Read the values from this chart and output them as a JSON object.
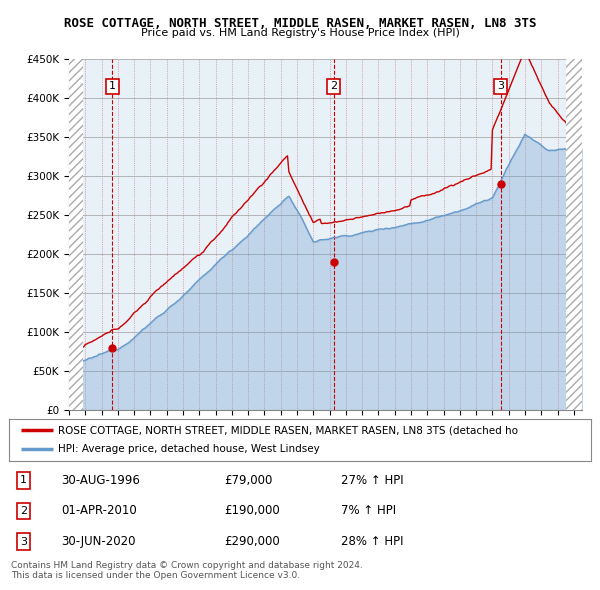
{
  "title": "ROSE COTTAGE, NORTH STREET, MIDDLE RASEN, MARKET RASEN, LN8 3TS",
  "subtitle": "Price paid vs. HM Land Registry's House Price Index (HPI)",
  "ylim": [
    0,
    450000
  ],
  "xlim_start": 1994.0,
  "xlim_end": 2025.5,
  "sale_color": "#cc0000",
  "hpi_color": "#6699cc",
  "hpi_fill_color": "#ddeeff",
  "chart_bg": "#e8f0f8",
  "sales": [
    {
      "date_num": 1996.66,
      "price": 79000,
      "label": "1"
    },
    {
      "date_num": 2010.25,
      "price": 190000,
      "label": "2"
    },
    {
      "date_num": 2020.5,
      "price": 290000,
      "label": "3"
    }
  ],
  "legend_sale_label": "ROSE COTTAGE, NORTH STREET, MIDDLE RASEN, MARKET RASEN, LN8 3TS (detached ho",
  "legend_hpi_label": "HPI: Average price, detached house, West Lindsey",
  "table_rows": [
    {
      "num": "1",
      "date": "30-AUG-1996",
      "price": "£79,000",
      "hpi": "27% ↑ HPI"
    },
    {
      "num": "2",
      "date": "01-APR-2010",
      "price": "£190,000",
      "hpi": "7% ↑ HPI"
    },
    {
      "num": "3",
      "date": "30-JUN-2020",
      "price": "£290,000",
      "hpi": "28% ↑ HPI"
    }
  ],
  "footer": "Contains HM Land Registry data © Crown copyright and database right 2024.\nThis data is licensed under the Open Government Licence v3.0.",
  "background_color": "#ffffff",
  "grid_color": "#cccccc",
  "hatch_start": 2024.5
}
